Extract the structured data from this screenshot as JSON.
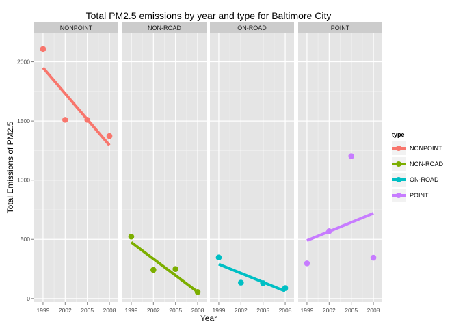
{
  "chart_data": {
    "type": "scatter",
    "title": "Total PM2.5 emissions by year and type for Baltimore City",
    "xlabel": "Year",
    "ylabel": "Total Emissions of PM2.5",
    "x_ticks": [
      1999,
      2002,
      2005,
      2008
    ],
    "y_ticks": [
      0,
      500,
      1000,
      1500,
      2000
    ],
    "ylim": [
      -30,
      2240
    ],
    "xlim": [
      1997.8,
      2009.2
    ],
    "grid": true,
    "legend": {
      "title": "type",
      "position": "right"
    },
    "facets": [
      {
        "name": "NONPOINT",
        "color": "#F8766D",
        "points": [
          {
            "x": 1999,
            "y": 2108
          },
          {
            "x": 2002,
            "y": 1510
          },
          {
            "x": 2005,
            "y": 1510
          },
          {
            "x": 2008,
            "y": 1373
          }
        ],
        "fit": {
          "x": [
            1999,
            2008
          ],
          "y": [
            1950,
            1295
          ]
        }
      },
      {
        "name": "NON-ROAD",
        "color": "#7CAE00",
        "points": [
          {
            "x": 1999,
            "y": 523
          },
          {
            "x": 2002,
            "y": 242
          },
          {
            "x": 2005,
            "y": 249
          },
          {
            "x": 2008,
            "y": 55
          }
        ],
        "fit": {
          "x": [
            1999,
            2008
          ],
          "y": [
            475,
            55
          ]
        }
      },
      {
        "name": "ON-ROAD",
        "color": "#00BFC4",
        "points": [
          {
            "x": 1999,
            "y": 347
          },
          {
            "x": 2002,
            "y": 134
          },
          {
            "x": 2005,
            "y": 130
          },
          {
            "x": 2008,
            "y": 88
          }
        ],
        "fit": {
          "x": [
            1999,
            2008
          ],
          "y": [
            290,
            62
          ]
        }
      },
      {
        "name": "POINT",
        "color": "#C77CFF",
        "points": [
          {
            "x": 1999,
            "y": 297
          },
          {
            "x": 2002,
            "y": 569
          },
          {
            "x": 2005,
            "y": 1203
          },
          {
            "x": 2008,
            "y": 345
          }
        ],
        "fit": {
          "x": [
            1999,
            2008
          ],
          "y": [
            490,
            720
          ]
        }
      }
    ]
  }
}
